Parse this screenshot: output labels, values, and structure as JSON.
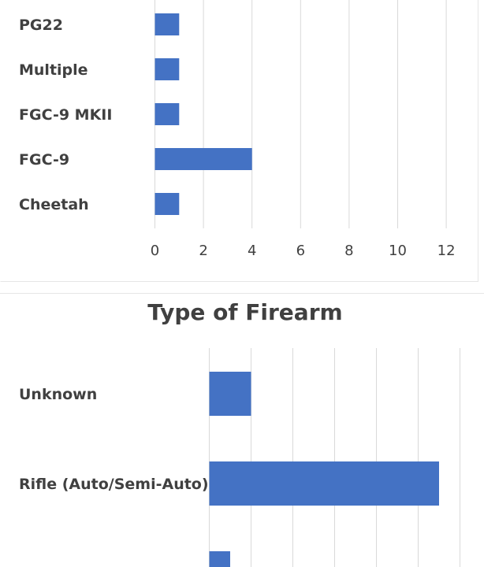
{
  "colors": {
    "bar": "#4472c4",
    "grid": "#d9d9d9",
    "text": "#404040",
    "frame": "#e6e6e6"
  },
  "chart_data": [
    {
      "type": "bar",
      "orientation": "horizontal",
      "title": "",
      "categories": [
        "PG22",
        "Multiple",
        "FGC-9 MKII",
        "FGC-9",
        "Cheetah"
      ],
      "values": [
        1,
        1,
        1,
        4,
        1
      ],
      "xlim": [
        0,
        12
      ],
      "xticks": [
        "0",
        "2",
        "4",
        "6",
        "8",
        "10",
        "12"
      ],
      "grid": true,
      "legend": "none"
    },
    {
      "type": "bar",
      "orientation": "horizontal",
      "title": "Type of Firearm",
      "categories": [
        "Unknown",
        "Rifle (Auto/Semi-Auto)",
        ""
      ],
      "values": [
        1,
        5.5,
        0.5
      ],
      "grid": true,
      "legend": "none"
    }
  ]
}
